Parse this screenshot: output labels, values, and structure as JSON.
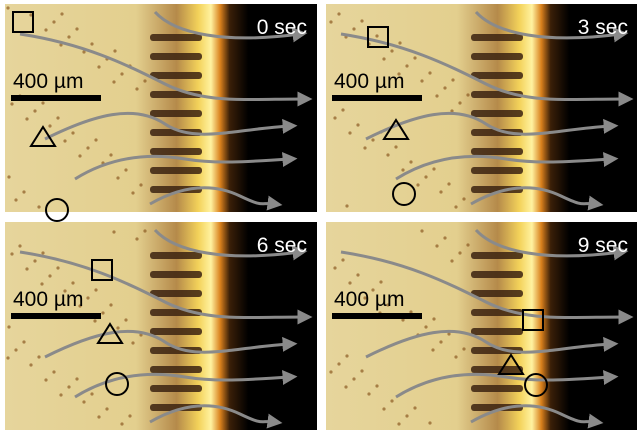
{
  "panels": [
    {
      "time": "0 sec",
      "scale": "400 µm"
    },
    {
      "time": "3 sec",
      "scale": "400 µm"
    },
    {
      "time": "6 sec",
      "scale": "400 µm"
    },
    {
      "time": "9 sec",
      "scale": "400 µm"
    }
  ]
}
